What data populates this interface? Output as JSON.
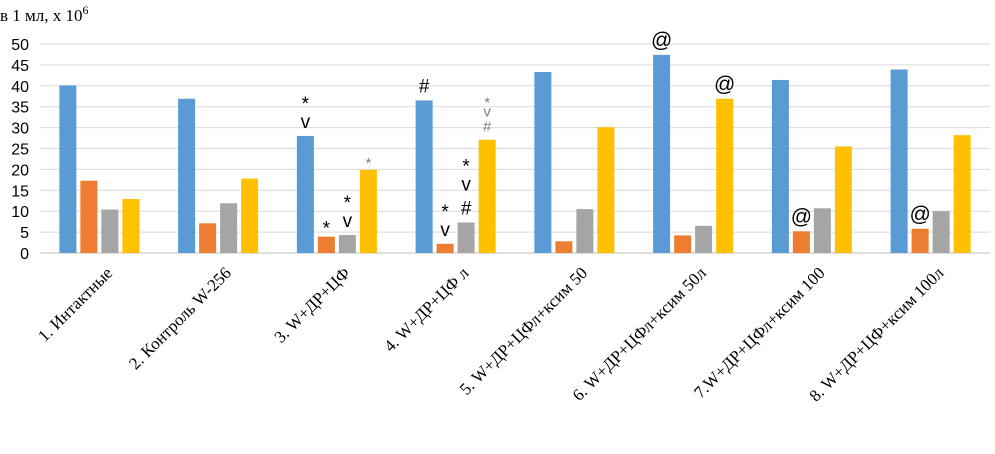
{
  "chart_data": {
    "type": "bar",
    "ylabel_main": "в 1 мл, х 10",
    "ylabel_sup": "6",
    "ylim": [
      0,
      50
    ],
    "yticks": [
      0,
      5,
      10,
      15,
      20,
      25,
      30,
      35,
      40,
      45,
      50
    ],
    "grid": true,
    "categories": [
      "1. Интактные",
      "2. Контроль W-256",
      "3. W+ДР+ЦФ",
      "4. W+ДР+ЦФ л",
      "5. W+ДР+ЦФл+ксим 50",
      "6. W+ДР+ЦФл+ксим 50л",
      "7.W+ДР+ЦФл+ксим 100",
      "8. W+ДР+ЦФ+ксим 100л"
    ],
    "series": [
      {
        "name": "series-1",
        "color": "#5B9BD5",
        "values": [
          40.1,
          36.9,
          28.0,
          36.5,
          43.3,
          47.4,
          41.4,
          43.9
        ]
      },
      {
        "name": "series-2",
        "color": "#ED7D31",
        "values": [
          17.3,
          7.1,
          3.9,
          2.2,
          2.8,
          4.2,
          5.2,
          5.8
        ]
      },
      {
        "name": "series-3",
        "color": "#A5A5A5",
        "values": [
          10.4,
          11.9,
          4.3,
          7.3,
          10.5,
          6.5,
          10.7,
          10.0
        ]
      },
      {
        "name": "series-4",
        "color": "#FFC000",
        "values": [
          12.9,
          17.8,
          19.9,
          27.1,
          30.1,
          36.9,
          25.5,
          28.2
        ]
      }
    ],
    "annotations": [
      {
        "category": 2,
        "series": 0,
        "lines": [
          "v",
          "*"
        ],
        "color": "black"
      },
      {
        "category": 2,
        "series": 1,
        "lines": [
          "*"
        ],
        "color": "black"
      },
      {
        "category": 2,
        "series": 2,
        "lines": [
          "v",
          "*"
        ],
        "color": "black"
      },
      {
        "category": 2,
        "series": 3,
        "lines": [
          "*"
        ],
        "color": "gray"
      },
      {
        "category": 3,
        "series": 0,
        "lines": [
          "#"
        ],
        "color": "black"
      },
      {
        "category": 3,
        "series": 1,
        "lines": [
          "v",
          "*"
        ],
        "color": "black"
      },
      {
        "category": 3,
        "series": 2,
        "lines": [
          "#",
          "v",
          "*"
        ],
        "color": "black"
      },
      {
        "category": 3,
        "series": 3,
        "lines": [
          "#",
          "v",
          "*"
        ],
        "color": "gray"
      },
      {
        "category": 5,
        "series": 0,
        "lines": [
          "@"
        ],
        "color": "black"
      },
      {
        "category": 5,
        "series": 3,
        "lines": [
          "@"
        ],
        "color": "black"
      },
      {
        "category": 6,
        "series": 1,
        "lines": [
          "@"
        ],
        "color": "black"
      },
      {
        "category": 7,
        "series": 1,
        "lines": [
          "@"
        ],
        "color": "black"
      }
    ]
  }
}
